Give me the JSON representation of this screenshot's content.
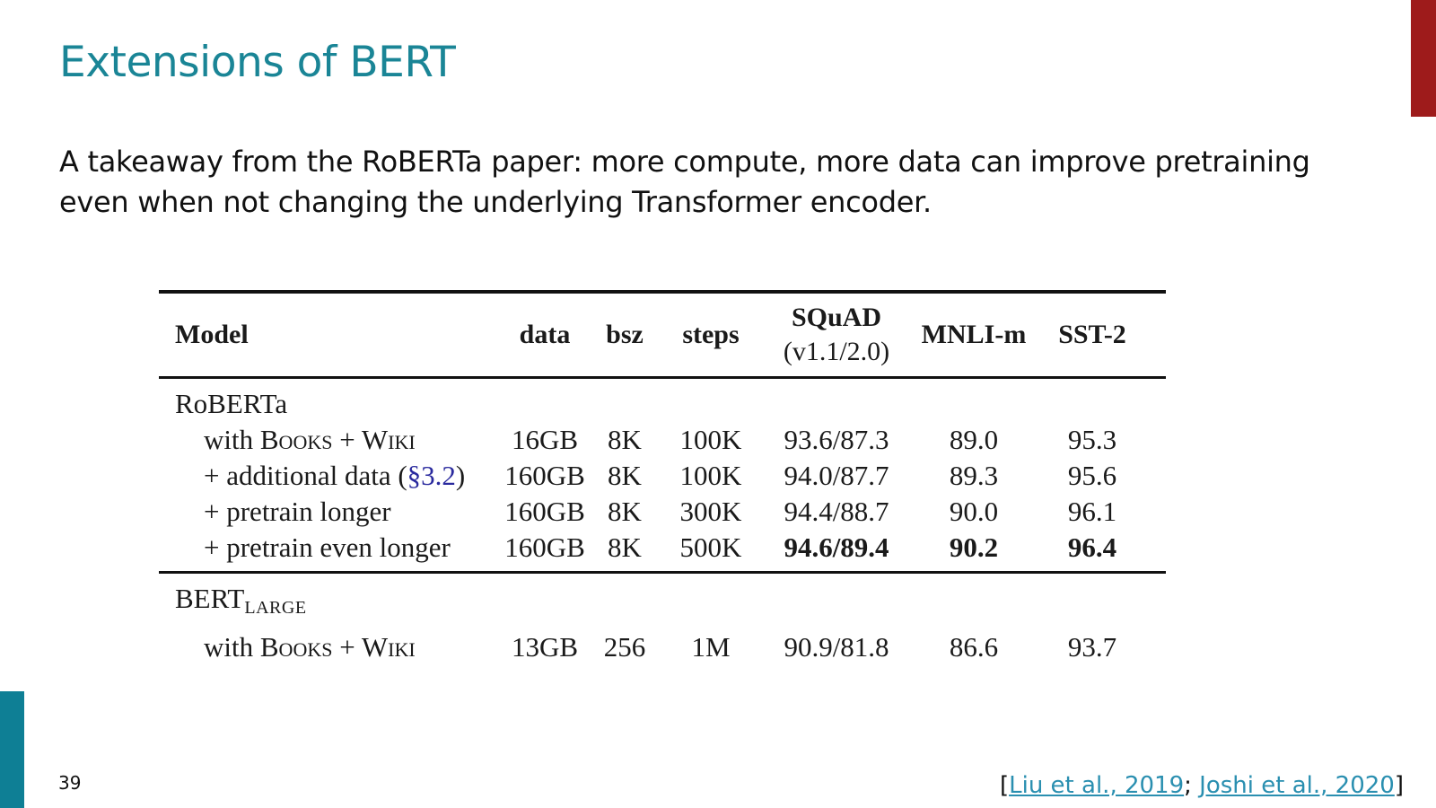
{
  "slide": {
    "title": "Extensions of BERT",
    "body_lines": [
      "A takeaway from the RoBERTa paper: more compute, more data can improve pretraining",
      "even when not changing the underlying Transformer encoder."
    ],
    "page_number": "39",
    "citation": {
      "open": "[",
      "sep": "; ",
      "close": "]",
      "refs": [
        "Liu et al., 2019",
        "Joshi et al., 2020"
      ]
    },
    "accent_colors": {
      "right_bar": "#9e1b1b",
      "left_bar": "#0e7f95",
      "title": "#1a8596"
    }
  },
  "table": {
    "headers": {
      "model": "Model",
      "data": "data",
      "bsz": "bsz",
      "steps": "steps",
      "squad": "SQuAD",
      "squad_sub": "(v1.1/2.0)",
      "mnli": "MNLI-m",
      "sst": "SST-2"
    },
    "roberta_group": "RoBERTa",
    "rows": [
      {
        "label_prefix": "with ",
        "label_sc": "Books + Wiki",
        "label_ref": "",
        "label_suffix": "",
        "data": "16GB",
        "bsz": "8K",
        "steps": "100K",
        "squad": "93.6/87.3",
        "mnli": "89.0",
        "sst": "95.3",
        "bold": false
      },
      {
        "label_prefix": "+ additional data (",
        "label_sc": "",
        "label_ref": "§3.2",
        "label_suffix": ")",
        "data": "160GB",
        "bsz": "8K",
        "steps": "100K",
        "squad": "94.0/87.7",
        "mnli": "89.3",
        "sst": "95.6",
        "bold": false
      },
      {
        "label_prefix": "+ pretrain longer",
        "label_sc": "",
        "label_ref": "",
        "label_suffix": "",
        "data": "160GB",
        "bsz": "8K",
        "steps": "300K",
        "squad": "94.4/88.7",
        "mnli": "90.0",
        "sst": "96.1",
        "bold": false
      },
      {
        "label_prefix": "+ pretrain even longer",
        "label_sc": "",
        "label_ref": "",
        "label_suffix": "",
        "data": "160GB",
        "bsz": "8K",
        "steps": "500K",
        "squad": "94.6/89.4",
        "mnli": "90.2",
        "sst": "96.4",
        "bold": true
      }
    ],
    "bert_group": {
      "name": "BERT",
      "subscript": "LARGE"
    },
    "bert_row": {
      "label_prefix": "with ",
      "label_sc": "Books + Wiki",
      "data": "13GB",
      "bsz": "256",
      "steps": "1M",
      "squad": "90.9/81.8",
      "mnli": "86.6",
      "sst": "93.7"
    }
  }
}
